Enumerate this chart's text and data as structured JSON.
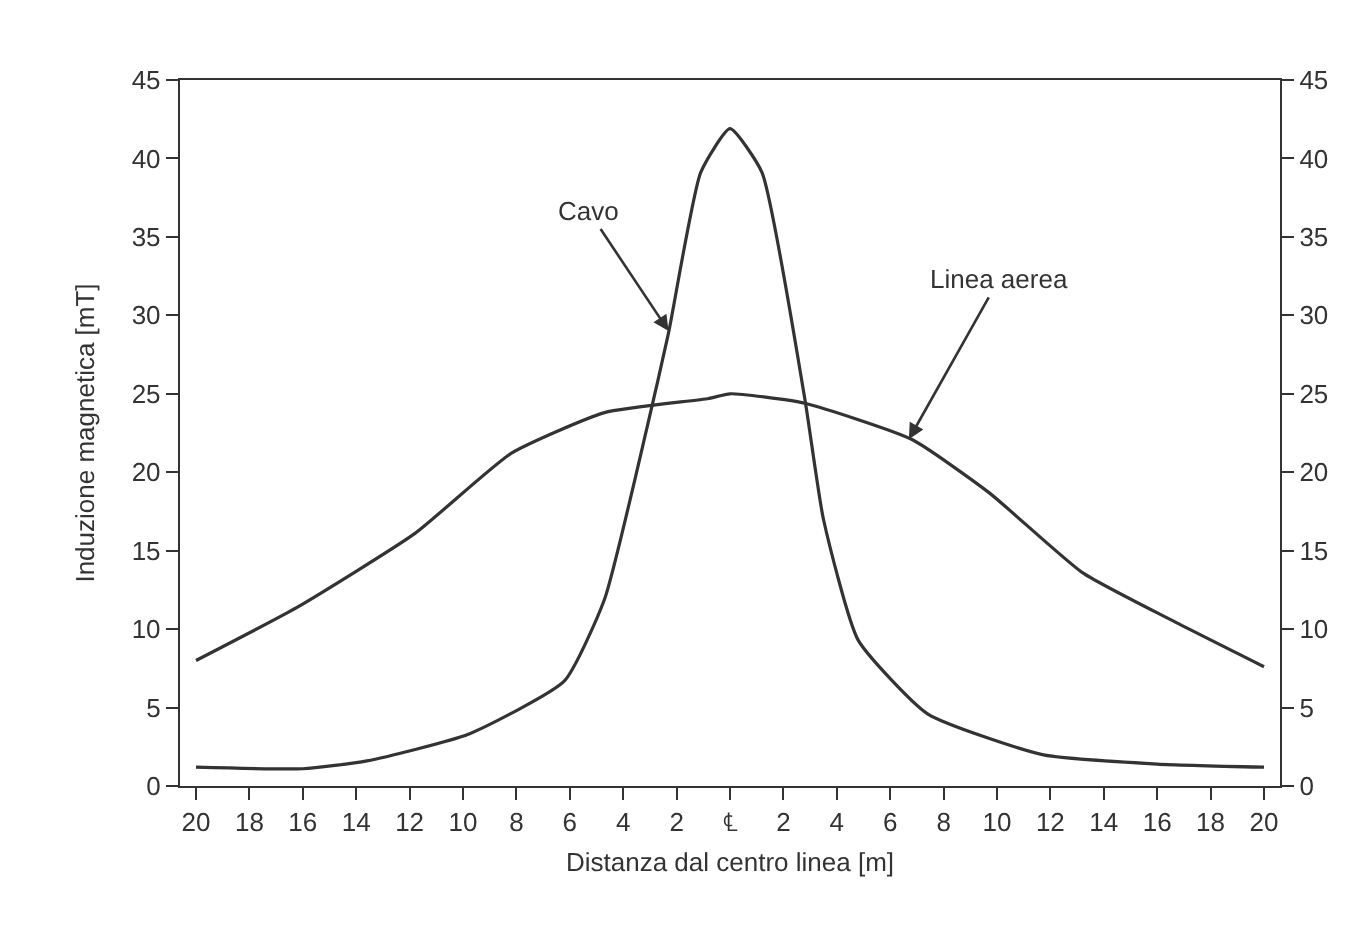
{
  "chart_data": {
    "type": "line",
    "xlabel": "Distanza dal centro linea [m]",
    "ylabel": "Induzione magnetica [mT]",
    "series": [
      {
        "color": "#333333",
        "x": [
          -20,
          -16,
          -13.6,
          -9.8,
          -6.2,
          -4.7,
          -3.1,
          -2.3,
          -1.1,
          0,
          1.2,
          2.8,
          3.5,
          4.8,
          7.4,
          11.7,
          16,
          20
        ],
        "values": [
          1.2,
          1.1,
          1.6,
          3.3,
          6.7,
          11.9,
          22.9,
          28.9,
          39.1,
          41.9,
          39.1,
          24.7,
          17,
          9.3,
          4.6,
          2.0,
          1.4,
          1.2
        ]
      },
      {
        "color": "#333333",
        "x": [
          -20,
          -16.2,
          -11.8,
          -8.2,
          -4.7,
          -0.8,
          0,
          2.8,
          6.8,
          9.7,
          13.2,
          16.5,
          20
        ],
        "values": [
          8.0,
          11.4,
          16.1,
          21.2,
          23.8,
          24.7,
          25,
          24.4,
          22.1,
          18.7,
          13.6,
          10.6,
          7.6
        ]
      }
    ],
    "annotations": [
      {
        "text": "Cavo",
        "x": -2.3,
        "y": 29
      },
      {
        "text": "Linea aerea",
        "x": 6.7,
        "y": 22.1
      }
    ],
    "xlim": [
      -20.6,
      20.6
    ],
    "xticks": [
      {
        "value": -20,
        "label": "20"
      },
      {
        "value": -18,
        "label": "18"
      },
      {
        "value": -16,
        "label": "16"
      },
      {
        "value": -14,
        "label": "14"
      },
      {
        "value": -12,
        "label": "12"
      },
      {
        "value": -10,
        "label": "10"
      },
      {
        "value": -8,
        "label": "8"
      },
      {
        "value": -6,
        "label": "6"
      },
      {
        "value": -4,
        "label": "4"
      },
      {
        "value": -2,
        "label": "2"
      },
      {
        "value": 0,
        "label": "℄"
      },
      {
        "value": 2,
        "label": "2"
      },
      {
        "value": 4,
        "label": "4"
      },
      {
        "value": 6,
        "label": "6"
      },
      {
        "value": 8,
        "label": "8"
      },
      {
        "value": 10,
        "label": "10"
      },
      {
        "value": 12,
        "label": "12"
      },
      {
        "value": 14,
        "label": "14"
      },
      {
        "value": 16,
        "label": "16"
      },
      {
        "value": 18,
        "label": "18"
      },
      {
        "value": 20,
        "label": "20"
      }
    ],
    "ylim": [
      0,
      45
    ],
    "yticks": [
      0,
      5,
      10,
      15,
      20,
      25,
      30,
      35,
      40,
      45
    ],
    "y2lim": [
      0,
      45
    ],
    "y2ticks": [
      0,
      5,
      10,
      15,
      20,
      25,
      30,
      35,
      40,
      45
    ],
    "grid": false,
    "legend": false,
    "marker": "none",
    "line_style": "solid"
  }
}
